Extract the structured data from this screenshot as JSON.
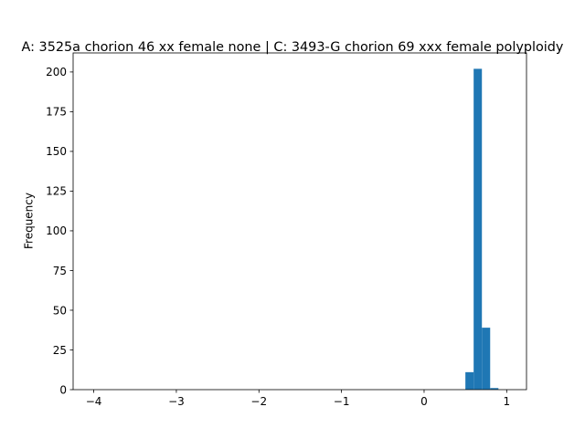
{
  "chart_data": {
    "type": "bar",
    "title": "A: 3525a chorion 46 xx female none | C: 3493-G chorion 69 xxx female polyploidy",
    "xlabel": "",
    "ylabel": "Frequency",
    "xlim": [
      -4.25,
      1.24
    ],
    "ylim": [
      0,
      212
    ],
    "x_ticks": [
      -4,
      -3,
      -2,
      -1,
      0,
      1
    ],
    "y_ticks": [
      0,
      25,
      50,
      75,
      100,
      125,
      150,
      175,
      200
    ],
    "bin_width": 0.1,
    "bins": [
      {
        "x0": 0.5,
        "x1": 0.6,
        "value": 11
      },
      {
        "x0": 0.6,
        "x1": 0.7,
        "value": 202
      },
      {
        "x0": 0.7,
        "x1": 0.8,
        "value": 39
      },
      {
        "x0": 0.8,
        "x1": 0.9,
        "value": 1
      }
    ],
    "bar_color": "#1f77b4",
    "grid": false,
    "legend": "none"
  }
}
